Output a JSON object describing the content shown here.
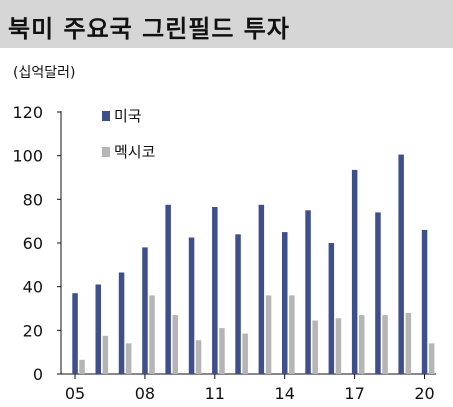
{
  "header": {
    "title": "북미 주요국 그린필드 투자",
    "unit": "(십억달러)"
  },
  "colors": {
    "title_bg": "#d6d6d6",
    "us": "#3f4f8c",
    "mexico": "#b5b5b5",
    "axis": "#111111"
  },
  "chart_data": {
    "type": "bar",
    "title": "북미 주요국 그린필드 투자",
    "ylabel": "(십억달러)",
    "xlabel": "",
    "ylim": [
      0,
      120
    ],
    "yticks": [
      0,
      20,
      40,
      60,
      80,
      100,
      120
    ],
    "grid": false,
    "legend_placement": "top-left",
    "categories": [
      "2005",
      "2006",
      "2007",
      "2008",
      "2009",
      "2010",
      "2011",
      "2012",
      "2013",
      "2014",
      "2015",
      "2016",
      "2017",
      "2018",
      "2019",
      "2020"
    ],
    "xtick_labels": [
      {
        "category": "2005",
        "label": "05"
      },
      {
        "category": "2008",
        "label": "08"
      },
      {
        "category": "2011",
        "label": "11"
      },
      {
        "category": "2014",
        "label": "14"
      },
      {
        "category": "2017",
        "label": "17"
      },
      {
        "category": "2020",
        "label": "20"
      }
    ],
    "series": [
      {
        "name": "미국",
        "color": "#3f4f8c",
        "values": [
          37,
          41,
          46.5,
          58,
          77.5,
          62.5,
          76.5,
          64,
          77.5,
          65,
          75,
          60,
          93.5,
          74,
          100.5,
          66
        ]
      },
      {
        "name": "멕시코",
        "color": "#b5b5b5",
        "values": [
          6.5,
          17.5,
          14,
          36,
          27,
          15.5,
          21,
          18.5,
          36,
          36,
          24.5,
          25.5,
          27,
          27,
          28,
          14
        ]
      }
    ]
  }
}
